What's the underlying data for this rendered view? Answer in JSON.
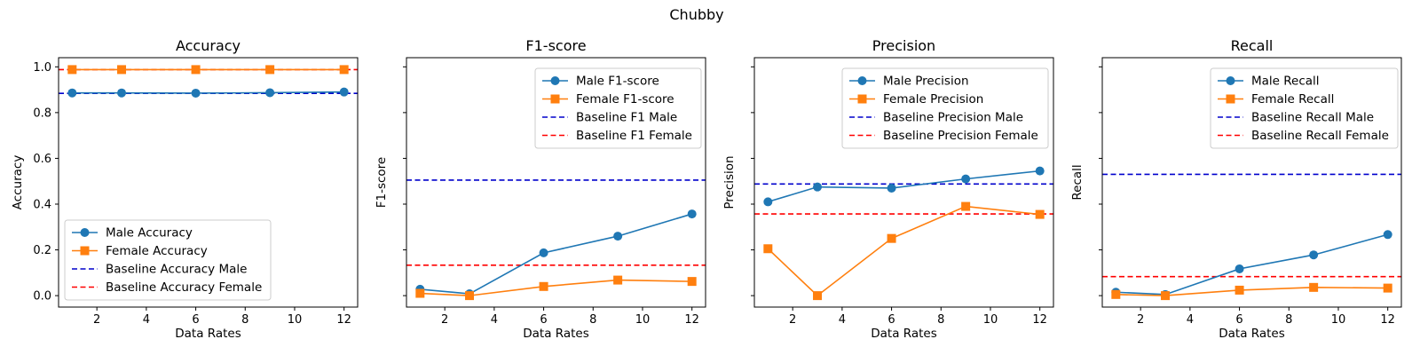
{
  "figure": {
    "title": "Chubby"
  },
  "chart_data": [
    {
      "type": "line",
      "title": "Accuracy",
      "xlabel": "Data Rates",
      "ylabel": "Accuracy",
      "x": [
        1,
        3,
        6,
        9,
        12
      ],
      "xlim": [
        0.45,
        12.55
      ],
      "xticks": [
        2,
        4,
        6,
        8,
        10,
        12
      ],
      "ylim": [
        -0.05,
        1.04
      ],
      "yticks": [
        0.0,
        0.2,
        0.4,
        0.6,
        0.8,
        1.0
      ],
      "ytick_labels": [
        "0.0",
        "0.2",
        "0.4",
        "0.6",
        "0.8",
        "1.0"
      ],
      "series": [
        {
          "name": "Male Accuracy",
          "values": [
            0.886,
            0.886,
            0.885,
            0.887,
            0.89
          ],
          "color": "#1f77b4",
          "marker": "circle",
          "style": "solid"
        },
        {
          "name": "Female Accuracy",
          "values": [
            0.988,
            0.988,
            0.988,
            0.988,
            0.988
          ],
          "color": "#ff7f0e",
          "marker": "square",
          "style": "solid"
        }
      ],
      "baselines": [
        {
          "name": "Baseline Accuracy Male",
          "value": 0.884,
          "color": "#0000cc",
          "style": "dashed"
        },
        {
          "name": "Baseline Accuracy Female",
          "value": 0.988,
          "color": "#ff0000",
          "style": "dashed"
        }
      ],
      "legend": "lower-left",
      "grid": false
    },
    {
      "type": "line",
      "title": "F1-score",
      "xlabel": "Data Rates",
      "ylabel": "F1-score",
      "x": [
        1,
        3,
        6,
        9,
        12
      ],
      "xlim": [
        0.45,
        12.55
      ],
      "xticks": [
        2,
        4,
        6,
        8,
        10,
        12
      ],
      "ylim": [
        -0.05,
        1.04
      ],
      "yticks": [
        0.0,
        0.2,
        0.4,
        0.6,
        0.8,
        1.0
      ],
      "ytick_labels": [],
      "series": [
        {
          "name": "Male F1-score",
          "values": [
            0.028,
            0.008,
            0.187,
            0.26,
            0.357
          ],
          "color": "#1f77b4",
          "marker": "circle",
          "style": "solid"
        },
        {
          "name": "Female F1-score",
          "values": [
            0.01,
            0.0,
            0.04,
            0.068,
            0.062
          ],
          "color": "#ff7f0e",
          "marker": "square",
          "style": "solid"
        }
      ],
      "baselines": [
        {
          "name": "Baseline F1 Male",
          "value": 0.505,
          "color": "#0000cc",
          "style": "dashed"
        },
        {
          "name": "Baseline F1 Female",
          "value": 0.133,
          "color": "#ff0000",
          "style": "dashed"
        }
      ],
      "legend": "upper-right",
      "grid": false
    },
    {
      "type": "line",
      "title": "Precision",
      "xlabel": "Data Rates",
      "ylabel": "Precision",
      "x": [
        1,
        3,
        6,
        9,
        12
      ],
      "xlim": [
        0.45,
        12.55
      ],
      "xticks": [
        2,
        4,
        6,
        8,
        10,
        12
      ],
      "ylim": [
        -0.05,
        1.04
      ],
      "yticks": [
        0.0,
        0.2,
        0.4,
        0.6,
        0.8,
        1.0
      ],
      "ytick_labels": [],
      "series": [
        {
          "name": "Male Precision",
          "values": [
            0.41,
            0.475,
            0.47,
            0.51,
            0.545
          ],
          "color": "#1f77b4",
          "marker": "circle",
          "style": "solid"
        },
        {
          "name": "Female Precision",
          "values": [
            0.205,
            0.0,
            0.25,
            0.39,
            0.355
          ],
          "color": "#ff7f0e",
          "marker": "square",
          "style": "solid"
        }
      ],
      "baselines": [
        {
          "name": "Baseline Precision Male",
          "value": 0.488,
          "color": "#0000cc",
          "style": "dashed"
        },
        {
          "name": "Baseline Precision Female",
          "value": 0.357,
          "color": "#ff0000",
          "style": "dashed"
        }
      ],
      "legend": "upper-right",
      "grid": false
    },
    {
      "type": "line",
      "title": "Recall",
      "xlabel": "Data Rates",
      "ylabel": "Recall",
      "x": [
        1,
        3,
        6,
        9,
        12
      ],
      "xlim": [
        0.45,
        12.55
      ],
      "xticks": [
        2,
        4,
        6,
        8,
        10,
        12
      ],
      "ylim": [
        -0.05,
        1.04
      ],
      "yticks": [
        0.0,
        0.2,
        0.4,
        0.6,
        0.8,
        1.0
      ],
      "ytick_labels": [],
      "series": [
        {
          "name": "Male Recall",
          "values": [
            0.015,
            0.005,
            0.117,
            0.178,
            0.267
          ],
          "color": "#1f77b4",
          "marker": "circle",
          "style": "solid"
        },
        {
          "name": "Female Recall",
          "values": [
            0.005,
            0.0,
            0.024,
            0.036,
            0.033
          ],
          "color": "#ff7f0e",
          "marker": "square",
          "style": "solid"
        }
      ],
      "baselines": [
        {
          "name": "Baseline Recall Male",
          "value": 0.53,
          "color": "#0000cc",
          "style": "dashed"
        },
        {
          "name": "Baseline Recall Female",
          "value": 0.083,
          "color": "#ff0000",
          "style": "dashed"
        }
      ],
      "legend": "upper-right",
      "grid": false
    }
  ]
}
